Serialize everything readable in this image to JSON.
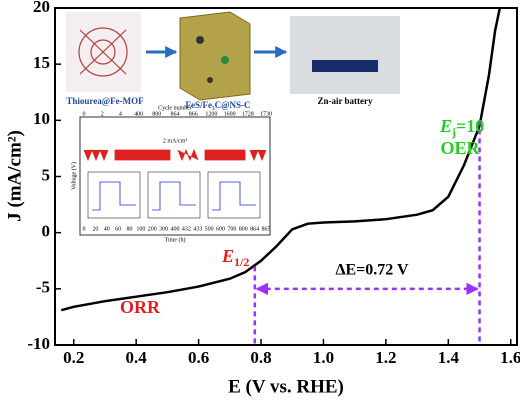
{
  "chart_data": {
    "type": "line",
    "xlabel": "E (V vs. RHE)",
    "ylabel": "J (mA/cm²)",
    "x": [
      0.16,
      0.2,
      0.3,
      0.4,
      0.5,
      0.6,
      0.7,
      0.75,
      0.8,
      0.85,
      0.88,
      0.9,
      0.95,
      1.0,
      1.1,
      1.2,
      1.3,
      1.35,
      1.4,
      1.45,
      1.5,
      1.53,
      1.55,
      1.565
    ],
    "series": [
      {
        "color": "#000000",
        "values": [
          -6.9,
          -6.6,
          -6.1,
          -5.7,
          -5.3,
          -4.8,
          -4.1,
          -3.5,
          -2.5,
          -1.2,
          -0.3,
          0.3,
          0.8,
          0.9,
          1.0,
          1.2,
          1.6,
          2.0,
          3.2,
          6.0,
          9.5,
          14,
          18,
          20
        ]
      }
    ],
    "xlim": [
      0.14,
      1.62
    ],
    "ylim": [
      -10,
      20
    ],
    "xticks": [
      0.2,
      0.4,
      0.6,
      0.8,
      {
        "value": 1,
        "label": "1.0"
      },
      1.2,
      1.4,
      1.6
    ],
    "yticks": [
      -10,
      -5,
      0,
      5,
      10,
      15,
      20
    ],
    "annotations": {
      "orr": "ORR",
      "oer": "OER",
      "e_half": {
        "symbol": "E",
        "sub": "1/2",
        "x": 0.78,
        "y": -3
      },
      "e_j10": {
        "symbol": "E",
        "sub": "j",
        "rest": "=10",
        "x": 1.5,
        "y": 10
      },
      "delta_e": {
        "text": "ΔE=0.72 V",
        "y": -5
      },
      "guide_color": "#9b30ff"
    },
    "inset": {
      "captions": [
        "Thiourea@Fe-MOF",
        "FeS/Fe₃C@NS-C",
        "Zn-air battery"
      ],
      "cycle_axis_title": "Cycle number",
      "cycle_ticks": [
        "0",
        "2",
        "4",
        "400",
        "800",
        "864",
        "866",
        "1200",
        "1600",
        "1728",
        "1730"
      ],
      "current_label": "2 mA/cm²",
      "voltage_title": "Voltage (V)",
      "time_title": "Time (h)",
      "time_ticks": [
        "0",
        "20",
        "40",
        "60",
        "80",
        "100",
        "200",
        "300",
        "400",
        "432",
        "433",
        "500",
        "600",
        "700",
        "800",
        "864",
        "865"
      ]
    }
  }
}
